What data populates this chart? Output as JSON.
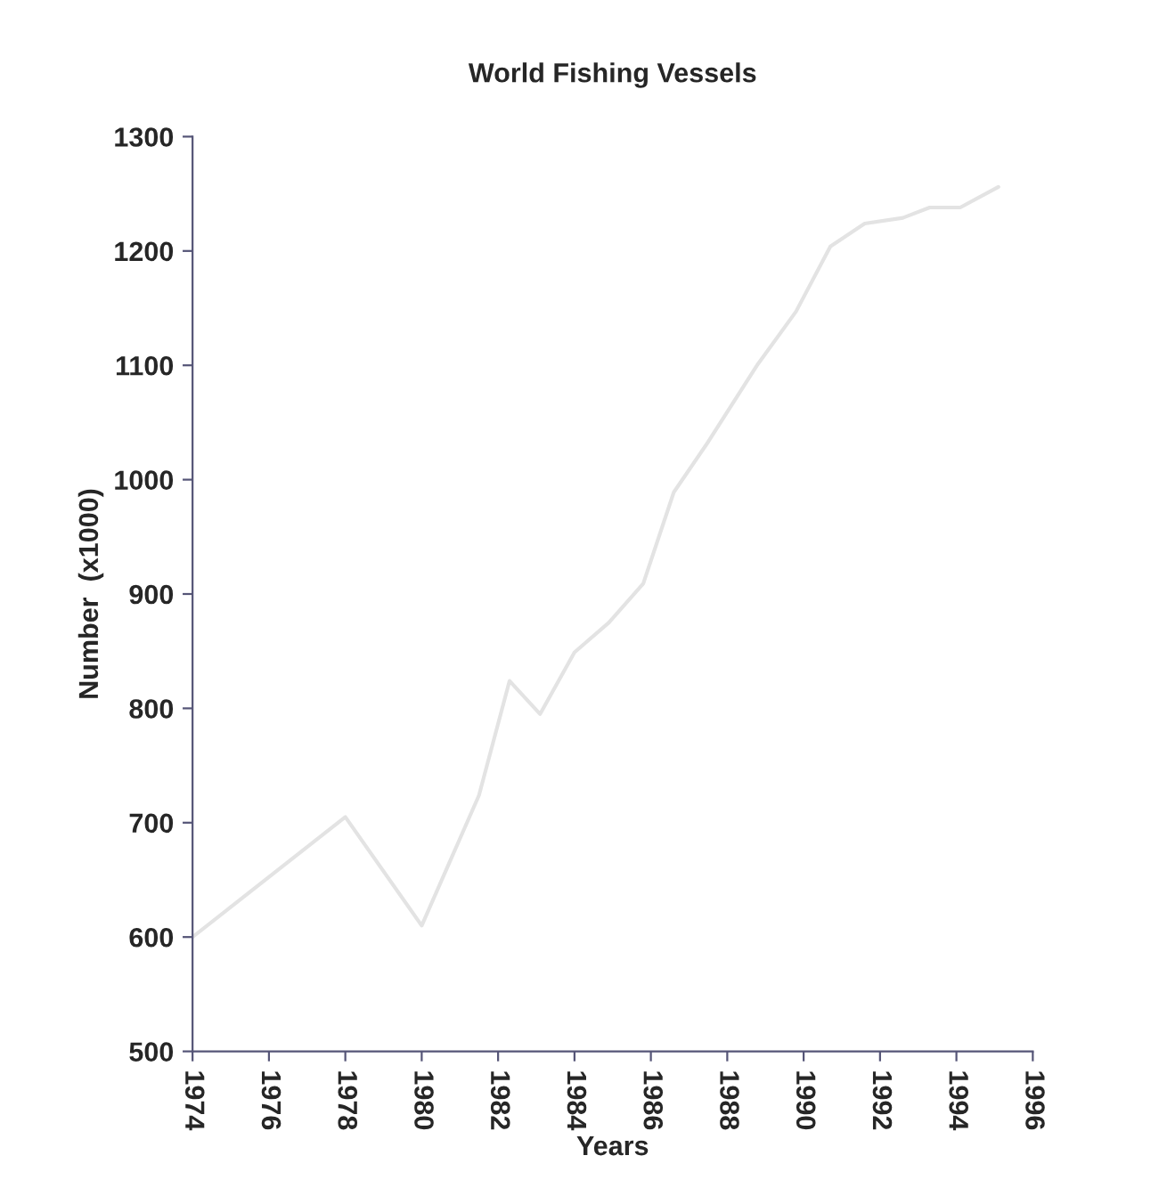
{
  "chart_data": {
    "type": "line",
    "title": "World Fishing Vessels",
    "xlabel": "Years",
    "ylabel": "Number  (x1000)",
    "x": [
      1974,
      1978,
      1980,
      1981.5,
      1982.3,
      1983.1,
      1984,
      1984.9,
      1985.8,
      1986.6,
      1987.5,
      1988.8,
      1989.8,
      1990.7,
      1991.6,
      1992.6,
      1993.3,
      1994.1,
      1995.1
    ],
    "series": [
      {
        "color": "#e3e3e3",
        "values": [
          600,
          705,
          610,
          724,
          824,
          795,
          849,
          875,
          909,
          989,
          1033,
          1101,
          1147,
          1204,
          1224,
          1229,
          1238,
          1238,
          1256
        ]
      }
    ],
    "xlim": [
      1974,
      1996
    ],
    "xticks": [
      1974,
      1976,
      1978,
      1980,
      1982,
      1984,
      1986,
      1988,
      1990,
      1992,
      1994,
      1996
    ],
    "ylim": [
      500,
      1300
    ],
    "yticks": [
      500,
      600,
      700,
      800,
      900,
      1000,
      1100,
      1200,
      1300
    ],
    "grid": false,
    "legend": false,
    "marker": "none",
    "line_style": "solid"
  }
}
